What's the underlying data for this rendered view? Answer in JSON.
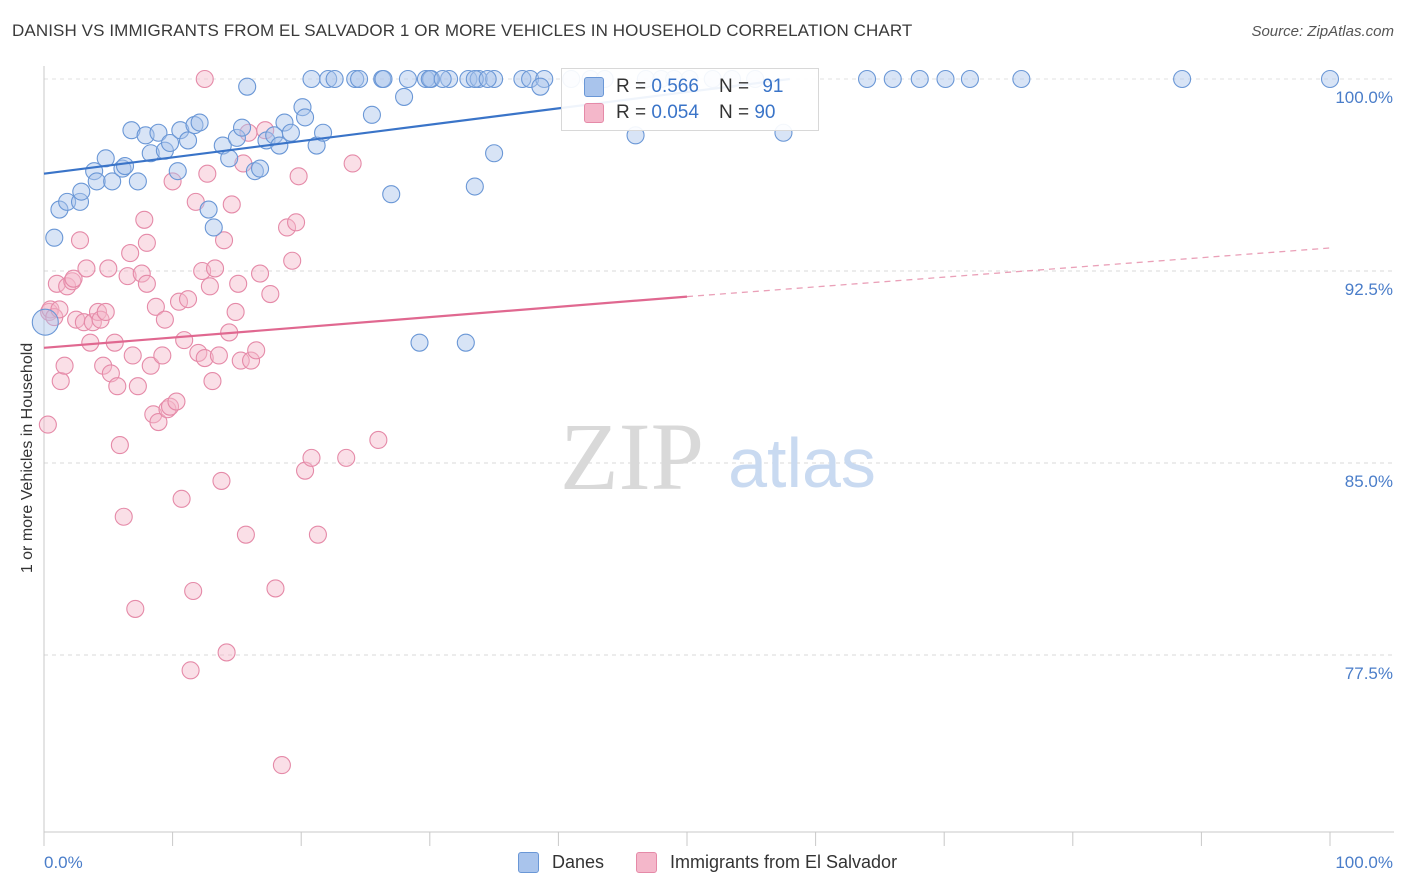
{
  "title": "DANISH VS IMMIGRANTS FROM EL SALVADOR 1 OR MORE VEHICLES IN HOUSEHOLD CORRELATION CHART",
  "source": "Source: ZipAtlas.com",
  "watermark": {
    "zip": "ZIP",
    "atlas": "atlas"
  },
  "colors": {
    "blue": "#3a74c8",
    "blue_fill": "#a9c4ec",
    "pink": "#e06890",
    "pink_fill": "#f4b7ca",
    "tick_text": "#4a7dc9"
  },
  "legend": {
    "danes": {
      "r_label": "R =",
      "r_value": "0.566",
      "n_label": "N =",
      "n_value": "91"
    },
    "salvador": {
      "r_label": "R =",
      "r_value": "0.054",
      "n_label": "N =",
      "n_value": "90"
    }
  },
  "bottom_legend": {
    "danes": "Danes",
    "salvador": "Immigrants from El Salvador"
  },
  "chart_data": {
    "type": "scatter",
    "title": "DANISH VS IMMIGRANTS FROM EL SALVADOR 1 OR MORE VEHICLES IN HOUSEHOLD CORRELATION CHART",
    "xlabel": "",
    "ylabel": "1 or more Vehicles in Household",
    "xlim": [
      0,
      100
    ],
    "ylim": [
      71.0,
      101.5
    ],
    "x_tick_labels": [
      "0.0%",
      "100.0%"
    ],
    "y_ticks": [
      77.5,
      85.0,
      92.5,
      100.0
    ],
    "y_tick_labels": [
      "77.5%",
      "85.0%",
      "92.5%",
      "100.0%"
    ],
    "grid": true,
    "legend_position": "top-center",
    "series": [
      {
        "name": "Danes",
        "color": "#3a74c8",
        "r": 0.566,
        "n": 91,
        "trend": {
          "x": [
            0,
            58
          ],
          "y": [
            96.3,
            100.0
          ]
        },
        "points": [
          [
            0.1,
            90.5
          ],
          [
            0.8,
            93.8
          ],
          [
            1.2,
            94.9
          ],
          [
            1.8,
            95.2
          ],
          [
            2.8,
            95.2
          ],
          [
            2.9,
            95.6
          ],
          [
            3.9,
            96.4
          ],
          [
            4.1,
            96.0
          ],
          [
            4.8,
            96.9
          ],
          [
            5.3,
            96.0
          ],
          [
            6.1,
            96.5
          ],
          [
            6.3,
            96.6
          ],
          [
            7.3,
            96.0
          ],
          [
            6.8,
            98.0
          ],
          [
            7.9,
            97.8
          ],
          [
            8.3,
            97.1
          ],
          [
            8.9,
            97.9
          ],
          [
            9.4,
            97.2
          ],
          [
            9.8,
            97.5
          ],
          [
            10.4,
            96.4
          ],
          [
            10.6,
            98.0
          ],
          [
            11.2,
            97.6
          ],
          [
            11.7,
            98.2
          ],
          [
            12.1,
            98.3
          ],
          [
            12.8,
            94.9
          ],
          [
            13.2,
            94.2
          ],
          [
            13.9,
            97.4
          ],
          [
            14.4,
            96.9
          ],
          [
            15.0,
            97.7
          ],
          [
            15.4,
            98.1
          ],
          [
            15.8,
            99.7
          ],
          [
            16.4,
            96.4
          ],
          [
            16.8,
            96.5
          ],
          [
            17.3,
            97.6
          ],
          [
            17.9,
            97.8
          ],
          [
            18.3,
            97.4
          ],
          [
            18.7,
            98.3
          ],
          [
            19.2,
            97.9
          ],
          [
            20.1,
            98.9
          ],
          [
            20.3,
            98.5
          ],
          [
            21.2,
            97.4
          ],
          [
            21.7,
            97.9
          ],
          [
            20.8,
            100.0
          ],
          [
            22.1,
            100.0
          ],
          [
            22.6,
            100.0
          ],
          [
            24.2,
            100.0
          ],
          [
            24.5,
            100.0
          ],
          [
            26.3,
            100.0
          ],
          [
            26.4,
            100.0
          ],
          [
            28.3,
            100.0
          ],
          [
            29.7,
            100.0
          ],
          [
            30.1,
            100.0
          ],
          [
            31.5,
            100.0
          ],
          [
            33.0,
            100.0
          ],
          [
            33.8,
            100.0
          ],
          [
            35.0,
            100.0
          ],
          [
            25.5,
            98.6
          ],
          [
            27.0,
            95.5
          ],
          [
            28.0,
            99.3
          ],
          [
            29.2,
            89.7
          ],
          [
            30.0,
            100.0
          ],
          [
            31.0,
            100.0
          ],
          [
            33.5,
            100.0
          ],
          [
            34.5,
            100.0
          ],
          [
            35.0,
            97.1
          ],
          [
            37.2,
            100.0
          ],
          [
            37.8,
            100.0
          ],
          [
            38.9,
            100.0
          ],
          [
            41.0,
            100.0
          ],
          [
            42.5,
            100.0
          ],
          [
            43.6,
            100.0
          ],
          [
            38.6,
            99.7
          ],
          [
            33.5,
            95.8
          ],
          [
            32.8,
            89.7
          ],
          [
            46.0,
            97.8
          ],
          [
            46.8,
            100.0
          ],
          [
            48.0,
            100.0
          ],
          [
            49.0,
            100.0
          ],
          [
            50.2,
            100.0
          ],
          [
            52.0,
            100.0
          ],
          [
            53.5,
            100.0
          ],
          [
            55.3,
            100.0
          ],
          [
            57.5,
            97.9
          ],
          [
            64.0,
            100.0
          ],
          [
            66.0,
            100.0
          ],
          [
            68.1,
            100.0
          ],
          [
            70.1,
            100.0
          ],
          [
            72.0,
            100.0
          ],
          [
            76.0,
            100.0
          ],
          [
            88.5,
            100.0
          ],
          [
            100.0,
            100.0
          ]
        ]
      },
      {
        "name": "Immigrants from El Salvador",
        "color": "#e06890",
        "r": 0.054,
        "n": 90,
        "trend": {
          "x": [
            0,
            50
          ],
          "y": [
            89.5,
            91.5
          ]
        },
        "trend_dashed": {
          "x": [
            50,
            100
          ],
          "y": [
            91.5,
            93.4
          ]
        },
        "points": [
          [
            0.3,
            86.5
          ],
          [
            0.4,
            90.9
          ],
          [
            0.5,
            91.0
          ],
          [
            0.8,
            90.7
          ],
          [
            1.0,
            92.0
          ],
          [
            1.2,
            91.0
          ],
          [
            1.3,
            88.2
          ],
          [
            1.6,
            88.8
          ],
          [
            1.8,
            91.9
          ],
          [
            2.2,
            92.1
          ],
          [
            2.3,
            92.2
          ],
          [
            2.5,
            90.6
          ],
          [
            2.8,
            93.7
          ],
          [
            3.1,
            90.5
          ],
          [
            3.3,
            92.6
          ],
          [
            3.6,
            89.7
          ],
          [
            3.8,
            90.5
          ],
          [
            4.2,
            90.9
          ],
          [
            4.4,
            90.6
          ],
          [
            4.6,
            88.8
          ],
          [
            4.8,
            90.9
          ],
          [
            5.0,
            92.6
          ],
          [
            5.2,
            88.5
          ],
          [
            5.5,
            89.7
          ],
          [
            5.7,
            88.0
          ],
          [
            5.9,
            85.7
          ],
          [
            6.2,
            82.9
          ],
          [
            6.5,
            92.3
          ],
          [
            6.7,
            93.2
          ],
          [
            6.9,
            89.2
          ],
          [
            7.1,
            79.3
          ],
          [
            7.3,
            88.0
          ],
          [
            7.6,
            92.4
          ],
          [
            7.8,
            94.5
          ],
          [
            8.0,
            92.0
          ],
          [
            8.3,
            88.8
          ],
          [
            8.5,
            86.9
          ],
          [
            8.7,
            91.1
          ],
          [
            8.9,
            86.6
          ],
          [
            9.2,
            89.2
          ],
          [
            9.4,
            90.6
          ],
          [
            9.6,
            87.1
          ],
          [
            9.8,
            87.2
          ],
          [
            10.0,
            96.0
          ],
          [
            10.3,
            87.4
          ],
          [
            10.5,
            91.3
          ],
          [
            10.7,
            83.6
          ],
          [
            10.9,
            89.8
          ],
          [
            11.2,
            91.4
          ],
          [
            11.4,
            76.9
          ],
          [
            11.6,
            80.0
          ],
          [
            11.8,
            95.2
          ],
          [
            12.0,
            89.3
          ],
          [
            12.3,
            92.5
          ],
          [
            12.5,
            89.1
          ],
          [
            12.7,
            96.3
          ],
          [
            12.9,
            91.9
          ],
          [
            13.1,
            88.2
          ],
          [
            13.3,
            92.6
          ],
          [
            13.6,
            89.2
          ],
          [
            13.8,
            84.3
          ],
          [
            14.0,
            93.7
          ],
          [
            14.2,
            77.6
          ],
          [
            14.4,
            90.1
          ],
          [
            14.6,
            95.1
          ],
          [
            14.9,
            90.9
          ],
          [
            15.1,
            92.0
          ],
          [
            15.3,
            89.0
          ],
          [
            15.5,
            96.7
          ],
          [
            15.7,
            82.2
          ],
          [
            15.9,
            97.9
          ],
          [
            16.1,
            89.0
          ],
          [
            16.5,
            89.4
          ],
          [
            16.8,
            92.4
          ],
          [
            17.2,
            98.0
          ],
          [
            17.6,
            91.6
          ],
          [
            18.0,
            80.1
          ],
          [
            18.5,
            73.2
          ],
          [
            18.9,
            94.2
          ],
          [
            19.3,
            92.9
          ],
          [
            19.6,
            94.4
          ],
          [
            19.8,
            96.2
          ],
          [
            20.3,
            84.7
          ],
          [
            20.8,
            85.2
          ],
          [
            21.3,
            82.2
          ],
          [
            23.5,
            85.2
          ],
          [
            24.0,
            96.7
          ],
          [
            26.0,
            85.9
          ],
          [
            12.5,
            100.0
          ],
          [
            8.0,
            93.6
          ]
        ]
      }
    ]
  }
}
